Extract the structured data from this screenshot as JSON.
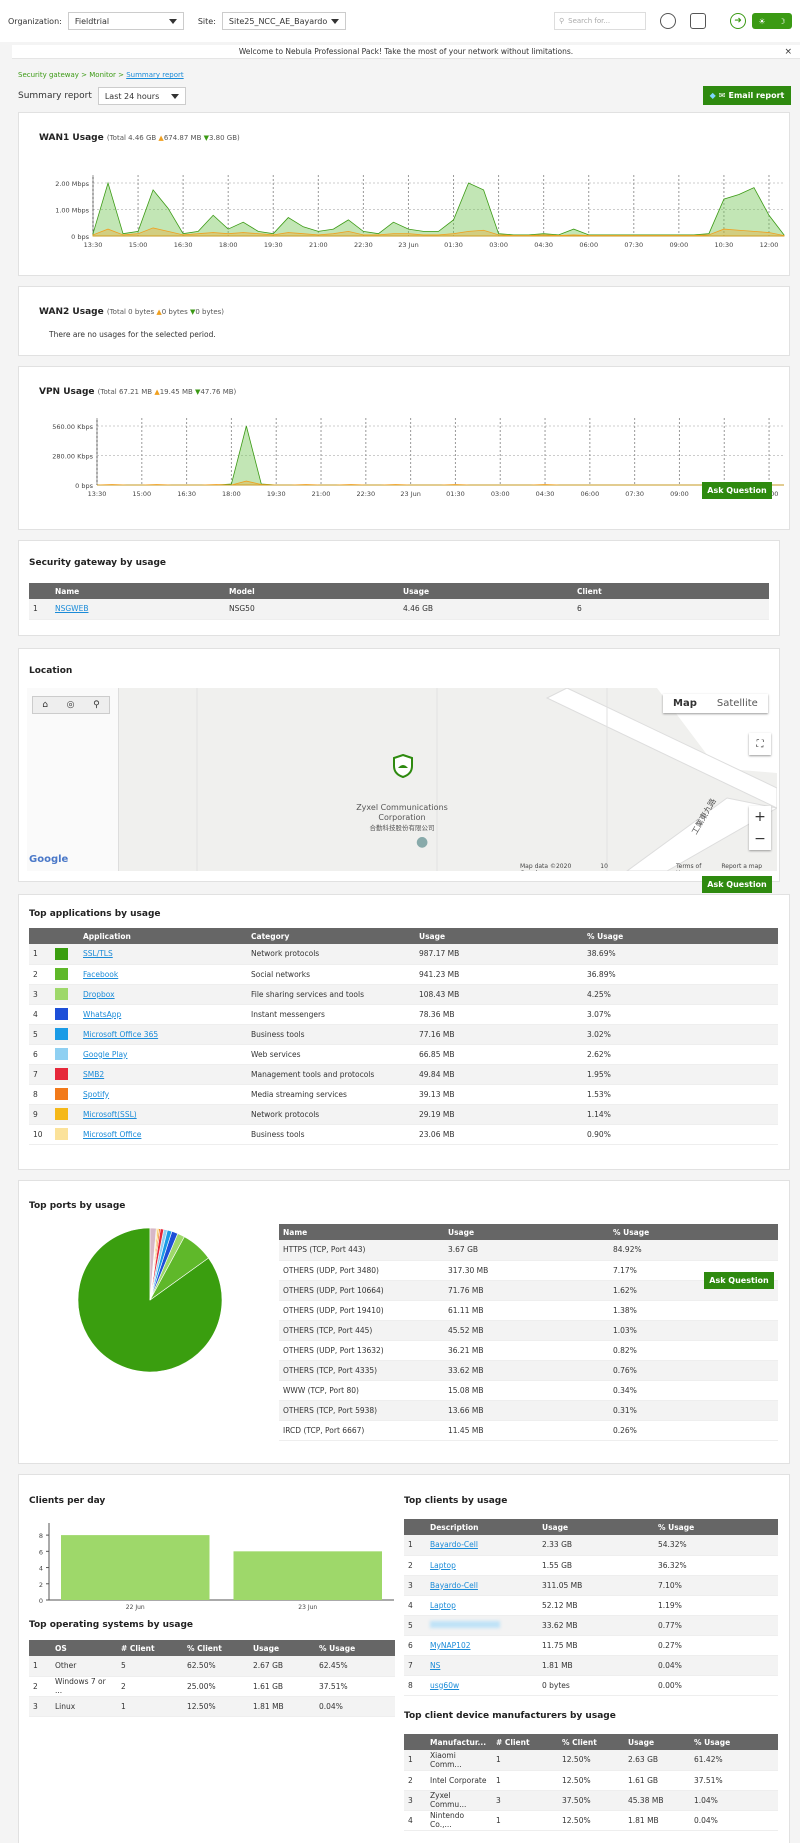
{
  "topbar": {
    "org_label": "Organization:",
    "org_value": "Fieldtrial",
    "site_label": "Site:",
    "site_value": "Site25_NCC_AE_Bayardo",
    "search_placeholder": "Search for..."
  },
  "banner": {
    "text": "Welcome to Nebula Professional Pack! Take the most of your network without limitations.",
    "close": "×"
  },
  "breadcrumb": {
    "part1": "Security gateway",
    "sep": ">",
    "part2": "Monitor",
    "part3": "Summary report"
  },
  "summary": {
    "title": "Summary report",
    "range": "Last 24 hours",
    "email_btn": "Email report"
  },
  "x_ticks": [
    "13:30",
    "15:00",
    "16:30",
    "18:00",
    "19:30",
    "21:00",
    "22:30",
    "23 Jun",
    "01:30",
    "03:00",
    "04:30",
    "06:00",
    "07:30",
    "09:00",
    "10:30",
    "12:00"
  ],
  "wan1": {
    "title": "WAN1 Usage",
    "total": "(Total 4.46 GB",
    "up": "674.87 MB",
    "down": "3.80 GB)",
    "yticks": [
      "2.00 Mbps",
      "1.00 Mbps",
      "0 bps"
    ],
    "chart_data": {
      "type": "area",
      "ylabel": "",
      "ylim": [
        0,
        2.3
      ],
      "x": [
        "13:30",
        "14:00",
        "14:30",
        "15:00",
        "15:30",
        "16:00",
        "16:30",
        "17:00",
        "17:30",
        "18:00",
        "18:30",
        "19:00",
        "19:30",
        "20:00",
        "20:30",
        "21:00",
        "21:30",
        "22:00",
        "22:30",
        "23:00",
        "23:30",
        "23 Jun",
        "00:30",
        "01:00",
        "01:30",
        "02:00",
        "02:30",
        "03:00",
        "03:30",
        "04:00",
        "04:30",
        "05:00",
        "05:30",
        "06:00",
        "06:30",
        "07:00",
        "07:30",
        "08:00",
        "08:30",
        "09:00",
        "09:30",
        "10:00",
        "10:30",
        "11:00",
        "11:30",
        "12:00",
        "12:30"
      ],
      "series": [
        {
          "values": [
            0.1,
            2.3,
            0.1,
            0.2,
            2.0,
            1.2,
            0.1,
            0.2,
            0.9,
            0.3,
            0.6,
            0.2,
            0.1,
            0.8,
            0.4,
            0.2,
            0.3,
            0.7,
            0.2,
            0.1,
            0.6,
            0.3,
            0.2,
            0.2,
            0.7,
            2.3,
            2.0,
            0.1,
            0.05,
            0.05,
            0.1,
            0.05,
            0.3,
            0.05,
            0.05,
            0.05,
            0.05,
            0.05,
            0.05,
            0.05,
            0.05,
            0.1,
            1.6,
            1.8,
            2.1,
            0.9,
            0.05
          ]
        },
        {
          "values": [
            0.05,
            0.3,
            0.05,
            0.1,
            0.35,
            0.2,
            0.05,
            0.1,
            0.15,
            0.1,
            0.15,
            0.1,
            0.05,
            0.15,
            0.1,
            0.05,
            0.1,
            0.2,
            0.05,
            0.05,
            0.1,
            0.1,
            0.05,
            0.05,
            0.1,
            0.2,
            0.25,
            0.05,
            0.02,
            0.02,
            0.05,
            0.02,
            0.05,
            0.02,
            0.02,
            0.02,
            0.02,
            0.02,
            0.02,
            0.02,
            0.02,
            0.05,
            0.3,
            0.25,
            0.2,
            0.15,
            0.02
          ]
        }
      ]
    }
  },
  "wan2": {
    "title": "WAN2 Usage",
    "total": "(Total 0 bytes",
    "up": "0 bytes",
    "down": "0 bytes)",
    "empty": "There are no usages for the selected period."
  },
  "vpn": {
    "title": "VPN Usage",
    "total": "(Total 67.21 MB",
    "up": "19.45 MB",
    "down": "47.76 MB)",
    "yticks": [
      "560.00 Kbps",
      "280.00 Kbps",
      "0 bps"
    ],
    "chart_data": {
      "type": "area",
      "ylim": [
        0,
        600
      ],
      "x": [
        "13:30",
        "14:00",
        "14:30",
        "15:00",
        "15:30",
        "16:00",
        "16:30",
        "17:00",
        "17:30",
        "18:00",
        "18:30",
        "19:00",
        "19:30",
        "20:00",
        "20:30",
        "21:00",
        "21:30",
        "22:00",
        "22:30",
        "23:00",
        "23:30",
        "23 Jun",
        "00:30",
        "01:00",
        "01:30",
        "02:00",
        "02:30",
        "03:00",
        "03:30",
        "04:00",
        "04:30",
        "05:00",
        "05:30",
        "06:00",
        "06:30",
        "07:00",
        "07:30",
        "08:00",
        "08:30",
        "09:00",
        "09:30",
        "10:00",
        "10:30",
        "11:00",
        "11:30",
        "12:00",
        "12:30"
      ],
      "series": [
        {
          "values": [
            0,
            0,
            0,
            0,
            0,
            0,
            0,
            0,
            0,
            10,
            600,
            10,
            0,
            0,
            0,
            0,
            0,
            0,
            0,
            0,
            0,
            0,
            0,
            0,
            0,
            0,
            0,
            0,
            0,
            0,
            0,
            0,
            0,
            0,
            0,
            0,
            0,
            0,
            0,
            0,
            0,
            0,
            0,
            0,
            0,
            0,
            0
          ]
        },
        {
          "values": [
            0,
            5,
            0,
            0,
            5,
            0,
            0,
            0,
            5,
            0,
            40,
            5,
            0,
            0,
            5,
            0,
            0,
            5,
            0,
            0,
            5,
            0,
            0,
            0,
            5,
            0,
            0,
            0,
            0,
            0,
            5,
            0,
            0,
            0,
            0,
            0,
            0,
            0,
            0,
            0,
            0,
            0,
            5,
            0,
            5,
            0,
            0
          ]
        }
      ]
    }
  },
  "ask_question": "Ask Question",
  "gateway": {
    "title": "Security gateway by usage",
    "headers": [
      "Name",
      "Model",
      "Usage",
      "Client"
    ],
    "rows": [
      {
        "idx": "1",
        "name": "NSGWEB",
        "model": "NSG50",
        "usage": "4.46 GB",
        "client": "6"
      }
    ]
  },
  "location": {
    "title": "Location",
    "map_tab": "Map",
    "satellite_tab": "Satellite",
    "place1": "Zyxel Communications",
    "place2": "Corporation",
    "place3": "合勤科技股份有限公司",
    "road": "工業東九路",
    "attribution": "Map data ©2020 Google",
    "scale": "10 m",
    "terms": "Terms of Use",
    "report": "Report a map error",
    "google": "Google"
  },
  "apps": {
    "title": "Top applications by usage",
    "headers": [
      "",
      "Application",
      "Category",
      "Usage",
      "% Usage"
    ],
    "rows": [
      {
        "idx": "1",
        "color": "#3a9e0f",
        "name": "SSL/TLS",
        "category": "Network protocols",
        "usage": "987.17 MB",
        "pct": "38.69%"
      },
      {
        "idx": "2",
        "color": "#5fb82a",
        "name": "Facebook",
        "category": "Social networks",
        "usage": "941.23 MB",
        "pct": "36.89%"
      },
      {
        "idx": "3",
        "color": "#9ed86a",
        "name": "Dropbox",
        "category": "File sharing services and tools",
        "usage": "108.43 MB",
        "pct": "4.25%"
      },
      {
        "idx": "4",
        "color": "#1d4fd8",
        "name": "WhatsApp",
        "category": "Instant messengers",
        "usage": "78.36 MB",
        "pct": "3.07%"
      },
      {
        "idx": "5",
        "color": "#1a9be6",
        "name": "Microsoft Office 365",
        "category": "Business tools",
        "usage": "77.16 MB",
        "pct": "3.02%"
      },
      {
        "idx": "6",
        "color": "#8fd0f2",
        "name": "Google Play",
        "category": "Web services",
        "usage": "66.85 MB",
        "pct": "2.62%"
      },
      {
        "idx": "7",
        "color": "#e6283a",
        "name": "SMB2",
        "category": "Management tools and protocols",
        "usage": "49.84 MB",
        "pct": "1.95%"
      },
      {
        "idx": "8",
        "color": "#f27a1a",
        "name": "Spotify",
        "category": "Media streaming services",
        "usage": "39.13 MB",
        "pct": "1.53%"
      },
      {
        "idx": "9",
        "color": "#f5b818",
        "name": "Microsoft(SSL)",
        "category": "Network protocols",
        "usage": "29.19 MB",
        "pct": "1.14%"
      },
      {
        "idx": "10",
        "color": "#fbe29a",
        "name": "Microsoft Office",
        "category": "Business tools",
        "usage": "23.06 MB",
        "pct": "0.90%"
      }
    ]
  },
  "ports": {
    "title": "Top ports by usage",
    "headers": [
      "Name",
      "Usage",
      "% Usage"
    ],
    "rows": [
      {
        "name": "HTTPS (TCP, Port 443)",
        "usage": "3.67 GB",
        "pct": "84.92%"
      },
      {
        "name": "OTHERS (UDP, Port 3480)",
        "usage": "317.30 MB",
        "pct": "7.17%"
      },
      {
        "name": "OTHERS (UDP, Port 10664)",
        "usage": "71.76 MB",
        "pct": "1.62%"
      },
      {
        "name": "OTHERS (UDP, Port 19410)",
        "usage": "61.11 MB",
        "pct": "1.38%"
      },
      {
        "name": "OTHERS (TCP, Port 445)",
        "usage": "45.52 MB",
        "pct": "1.03%"
      },
      {
        "name": "OTHERS (UDP, Port 13632)",
        "usage": "36.21 MB",
        "pct": "0.82%"
      },
      {
        "name": "OTHERS (TCP, Port 4335)",
        "usage": "33.62 MB",
        "pct": "0.76%"
      },
      {
        "name": "WWW (TCP, Port 80)",
        "usage": "15.08 MB",
        "pct": "0.34%"
      },
      {
        "name": "OTHERS (TCP, Port 5938)",
        "usage": "13.66 MB",
        "pct": "0.31%"
      },
      {
        "name": "IRCD (TCP, Port 6667)",
        "usage": "11.45 MB",
        "pct": "0.26%"
      }
    ],
    "chart_data": {
      "type": "pie",
      "values": [
        84.92,
        7.17,
        1.62,
        1.38,
        1.03,
        0.82,
        0.76,
        0.34,
        0.31,
        0.26,
        1.39
      ],
      "colors": [
        "#3a9e0f",
        "#5fb82a",
        "#9ed86a",
        "#1d4fd8",
        "#1a9be6",
        "#8fd0f2",
        "#e6283a",
        "#f27a1a",
        "#f5b818",
        "#fbe29a",
        "#d7b8c7"
      ]
    }
  },
  "clients_day": {
    "title": "Clients per day",
    "yticks": [
      "8",
      "6",
      "4",
      "2",
      "0"
    ],
    "chart_data": {
      "type": "bar",
      "categories": [
        "22 Jun",
        "23 Jun"
      ],
      "values": [
        8,
        6
      ],
      "ylim": [
        0,
        9
      ]
    }
  },
  "os": {
    "title": "Top operating systems by usage",
    "headers": [
      "",
      "OS",
      "# Client",
      "% Client",
      "Usage",
      "% Usage"
    ],
    "rows": [
      {
        "idx": "1",
        "os": "Other",
        "clients": "5",
        "pctc": "62.50%",
        "usage": "2.67 GB",
        "pct": "62.45%"
      },
      {
        "idx": "2",
        "os": "Windows 7 or ...",
        "clients": "2",
        "pctc": "25.00%",
        "usage": "1.61 GB",
        "pct": "37.51%"
      },
      {
        "idx": "3",
        "os": "Linux",
        "clients": "1",
        "pctc": "12.50%",
        "usage": "1.81 MB",
        "pct": "0.04%"
      }
    ]
  },
  "top_clients": {
    "title": "Top clients by usage",
    "headers": [
      "",
      "Description",
      "Usage",
      "% Usage"
    ],
    "rows": [
      {
        "idx": "1",
        "name": "Bayardo-Cell",
        "usage": "2.33 GB",
        "pct": "54.32%"
      },
      {
        "idx": "2",
        "name": "Laptop",
        "usage": "1.55 GB",
        "pct": "36.32%"
      },
      {
        "idx": "3",
        "name": "Bayardo-Cell",
        "usage": "311.05 MB",
        "pct": "7.10%"
      },
      {
        "idx": "4",
        "name": "Laptop",
        "usage": "52.12 MB",
        "pct": "1.19%"
      },
      {
        "idx": "5",
        "name": "",
        "usage": "33.62 MB",
        "pct": "0.77%"
      },
      {
        "idx": "6",
        "name": "MyNAP102",
        "usage": "11.75 MB",
        "pct": "0.27%"
      },
      {
        "idx": "7",
        "name": "NS",
        "usage": "1.81 MB",
        "pct": "0.04%"
      },
      {
        "idx": "8",
        "name": "usg60w",
        "usage": "0 bytes",
        "pct": "0.00%"
      }
    ]
  },
  "manufacturers": {
    "title": "Top client device manufacturers by usage",
    "headers": [
      "",
      "Manufactur...",
      "# Client",
      "% Client",
      "Usage",
      "% Usage"
    ],
    "rows": [
      {
        "idx": "1",
        "name": "Xiaomi Comm...",
        "clients": "1",
        "pctc": "12.50%",
        "usage": "2.63 GB",
        "pct": "61.42%"
      },
      {
        "idx": "2",
        "name": "Intel Corporate",
        "clients": "1",
        "pctc": "12.50%",
        "usage": "1.61 GB",
        "pct": "37.51%"
      },
      {
        "idx": "3",
        "name": "Zyxel Commu...",
        "clients": "3",
        "pctc": "37.50%",
        "usage": "45.38 MB",
        "pct": "1.04%"
      },
      {
        "idx": "4",
        "name": "Nintendo Co.,...",
        "clients": "1",
        "pctc": "12.50%",
        "usage": "1.81 MB",
        "pct": "0.04%"
      }
    ]
  }
}
